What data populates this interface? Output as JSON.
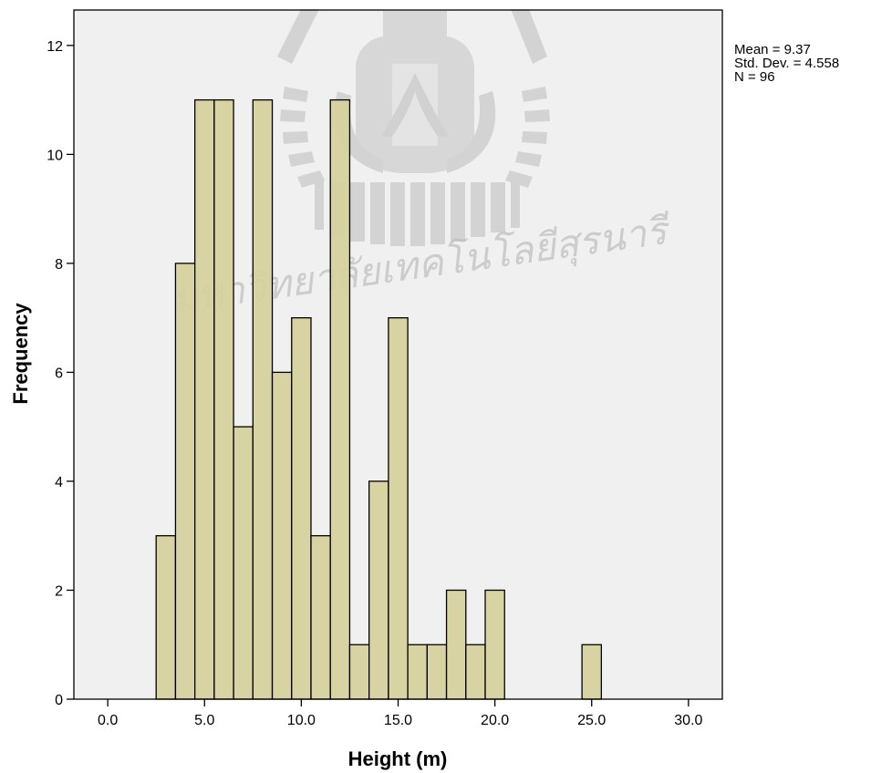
{
  "chart_data": {
    "type": "bar",
    "subtype": "histogram",
    "xlabel": "Height (m)",
    "ylabel": "Frequency",
    "xlim": [
      -1.75,
      31.75
    ],
    "ylim": [
      0,
      12.65
    ],
    "x_ticks": [
      0,
      5,
      10,
      15,
      20,
      25,
      30
    ],
    "x_tick_labels": [
      "0.0",
      "5.0",
      "10.0",
      "15.0",
      "20.0",
      "25.0",
      "30.0"
    ],
    "y_ticks": [
      0,
      2,
      4,
      6,
      8,
      10,
      12
    ],
    "y_tick_labels": [
      "0",
      "2",
      "4",
      "6",
      "8",
      "10",
      "12"
    ],
    "bin_width": 1,
    "bins": [
      {
        "start": 2.5,
        "end": 3.5,
        "count": 3
      },
      {
        "start": 3.5,
        "end": 4.5,
        "count": 8
      },
      {
        "start": 4.5,
        "end": 5.5,
        "count": 11
      },
      {
        "start": 5.5,
        "end": 6.5,
        "count": 11
      },
      {
        "start": 6.5,
        "end": 7.5,
        "count": 5
      },
      {
        "start": 7.5,
        "end": 8.5,
        "count": 11
      },
      {
        "start": 8.5,
        "end": 9.5,
        "count": 6
      },
      {
        "start": 9.5,
        "end": 10.5,
        "count": 7
      },
      {
        "start": 10.5,
        "end": 11.5,
        "count": 3
      },
      {
        "start": 11.5,
        "end": 12.5,
        "count": 11
      },
      {
        "start": 12.5,
        "end": 13.5,
        "count": 1
      },
      {
        "start": 13.5,
        "end": 14.5,
        "count": 4
      },
      {
        "start": 14.5,
        "end": 15.5,
        "count": 7
      },
      {
        "start": 15.5,
        "end": 16.5,
        "count": 1
      },
      {
        "start": 16.5,
        "end": 17.5,
        "count": 1
      },
      {
        "start": 17.5,
        "end": 18.5,
        "count": 2
      },
      {
        "start": 18.5,
        "end": 19.5,
        "count": 1
      },
      {
        "start": 19.5,
        "end": 20.5,
        "count": 2
      },
      {
        "start": 24.5,
        "end": 25.5,
        "count": 1
      }
    ],
    "stats": {
      "mean": "Mean = 9.37",
      "std_dev": "Std. Dev. = 4.558",
      "n": "N = 96"
    },
    "watermark_text": "มหาวิทยาลัยเทคโนโลยีสุรนารี",
    "grid": false,
    "legend": "none",
    "colors": {
      "bar_fill": "#d6d09c",
      "bar_stroke": "#000000",
      "plot_background": "#f0f0f0",
      "watermark": "#bdbdbd"
    }
  }
}
